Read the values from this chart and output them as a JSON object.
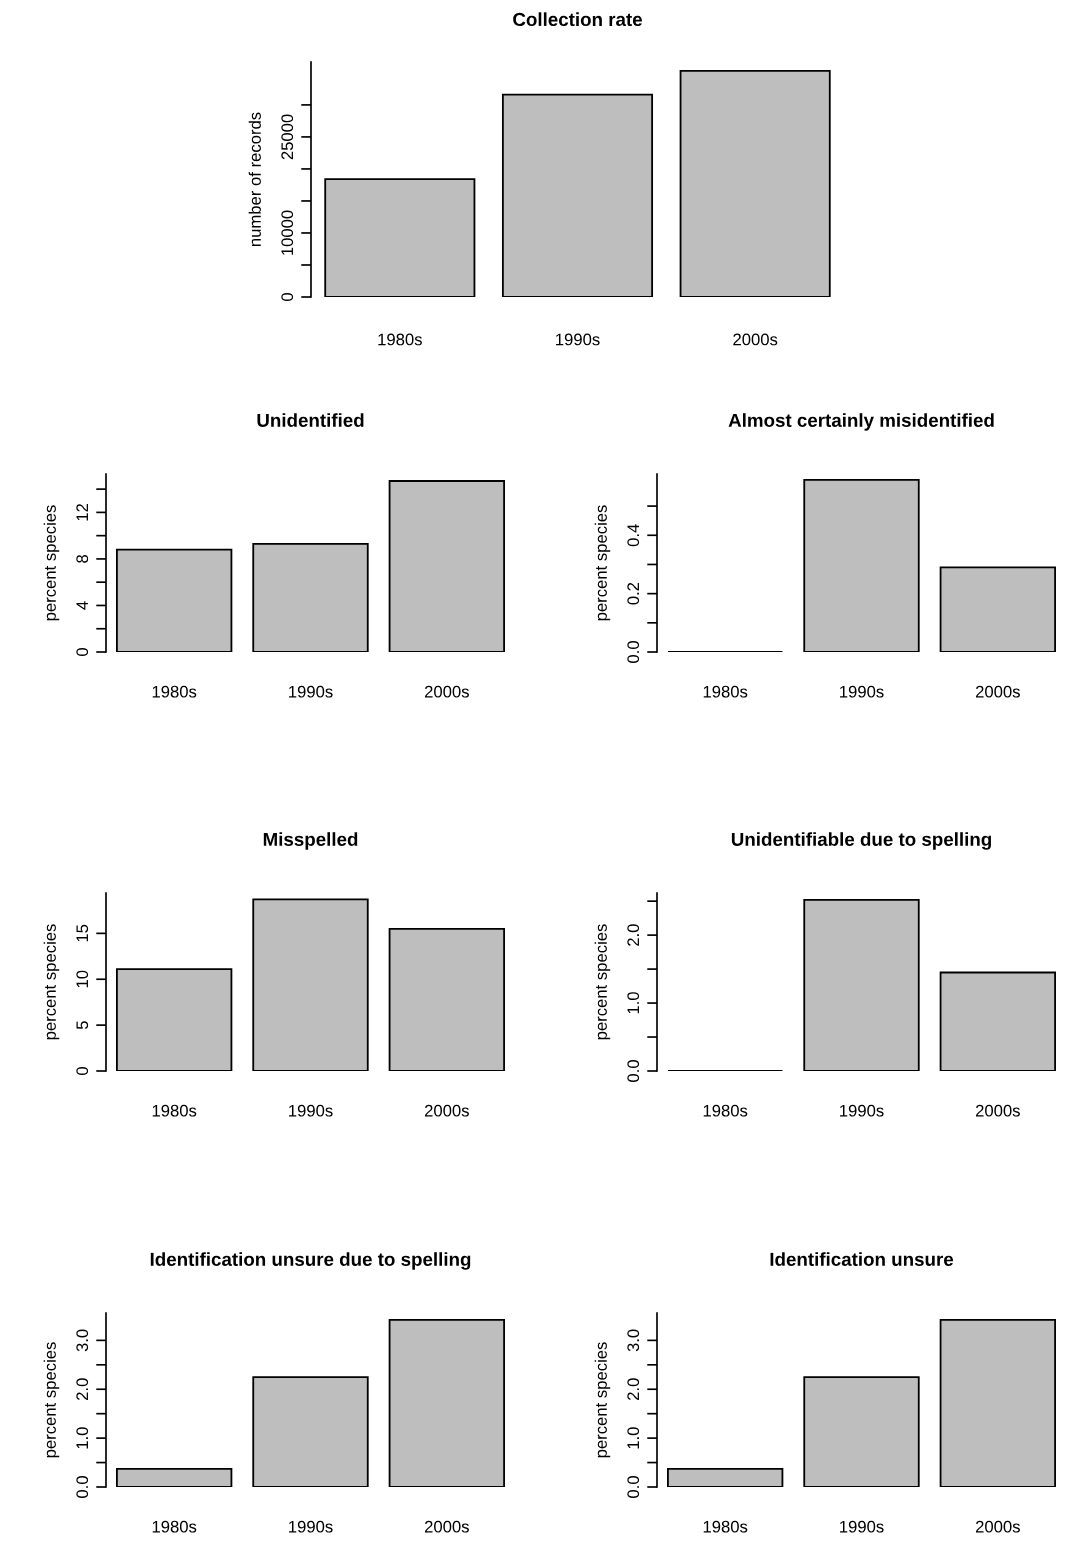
{
  "chart_data": [
    {
      "type": "bar",
      "title": "Collection rate",
      "ylabel": "number of records",
      "categories": [
        "1980s",
        "1990s",
        "2000s"
      ],
      "values": [
        18400,
        31600,
        35300
      ],
      "color": "#bebebe",
      "ylim": [
        0,
        36700
      ],
      "yticks": [
        0,
        {
          "value": 5000,
          "label": null
        },
        10000,
        {
          "value": 15000,
          "label": null
        },
        {
          "value": 20000,
          "label": null
        },
        25000,
        {
          "value": 30000,
          "label": null
        }
      ]
    },
    {
      "type": "bar",
      "title": "Unidentified",
      "ylabel": "percent species",
      "categories": [
        "1980s",
        "1990s",
        "2000s"
      ],
      "values": [
        8.8,
        9.3,
        14.7
      ],
      "color": "#bebebe",
      "ylim": [
        0,
        15.3
      ],
      "yticks": [
        0,
        {
          "value": 2,
          "label": null
        },
        4,
        {
          "value": 6,
          "label": null
        },
        8,
        {
          "value": 10,
          "label": null
        },
        12,
        {
          "value": 14,
          "label": null
        }
      ]
    },
    {
      "type": "bar",
      "title": "Almost certainly misidentified",
      "ylabel": "percent species",
      "categories": [
        "1980s",
        "1990s",
        "2000s"
      ],
      "values": [
        0,
        0.59,
        0.29
      ],
      "color": "#bebebe",
      "ylim": [
        0,
        0.61
      ],
      "yticks": [
        {
          "value": 0,
          "label": "0.0"
        },
        {
          "value": 0.1,
          "label": null
        },
        0.2,
        {
          "value": 0.3,
          "label": null
        },
        0.4,
        {
          "value": 0.5,
          "label": null
        }
      ]
    },
    {
      "type": "bar",
      "title": "Misspelled",
      "ylabel": "percent species",
      "categories": [
        "1980s",
        "1990s",
        "2000s"
      ],
      "values": [
        11.1,
        18.7,
        15.5
      ],
      "color": "#bebebe",
      "ylim": [
        0,
        19.4
      ],
      "yticks": [
        0,
        5,
        10,
        15
      ]
    },
    {
      "type": "bar",
      "title": "Unidentifiable due to spelling",
      "ylabel": "percent species",
      "categories": [
        "1980s",
        "1990s",
        "2000s"
      ],
      "values": [
        0,
        2.52,
        1.45
      ],
      "color": "#bebebe",
      "ylim": [
        0,
        2.62
      ],
      "yticks": [
        {
          "value": 0,
          "label": "0.0"
        },
        {
          "value": 0.5,
          "label": null
        },
        {
          "value": 1,
          "label": "1.0"
        },
        {
          "value": 1.5,
          "label": null
        },
        {
          "value": 2,
          "label": "2.0"
        },
        {
          "value": 2.5,
          "label": null
        }
      ]
    },
    {
      "type": "bar",
      "title": "Identification unsure due to spelling",
      "ylabel": "percent species",
      "categories": [
        "1980s",
        "1990s",
        "2000s"
      ],
      "values": [
        0.37,
        2.25,
        3.42
      ],
      "color": "#bebebe",
      "ylim": [
        0,
        3.56
      ],
      "yticks": [
        {
          "value": 0,
          "label": "0.0"
        },
        {
          "value": 0.5,
          "label": null
        },
        {
          "value": 1,
          "label": "1.0"
        },
        {
          "value": 1.5,
          "label": null
        },
        {
          "value": 2,
          "label": "2.0"
        },
        {
          "value": 2.5,
          "label": null
        },
        {
          "value": 3,
          "label": "3.0"
        }
      ]
    },
    {
      "type": "bar",
      "title": "Identification unsure",
      "ylabel": "percent species",
      "categories": [
        "1980s",
        "1990s",
        "2000s"
      ],
      "values": [
        0.37,
        2.25,
        3.42
      ],
      "color": "#bebebe",
      "ylim": [
        0,
        3.56
      ],
      "yticks": [
        {
          "value": 0,
          "label": "0.0"
        },
        {
          "value": 0.5,
          "label": null
        },
        {
          "value": 1,
          "label": "1.0"
        },
        {
          "value": 1.5,
          "label": null
        },
        {
          "value": 2,
          "label": "2.0"
        },
        {
          "value": 2.5,
          "label": null
        },
        {
          "value": 3,
          "label": "3.0"
        }
      ]
    }
  ]
}
